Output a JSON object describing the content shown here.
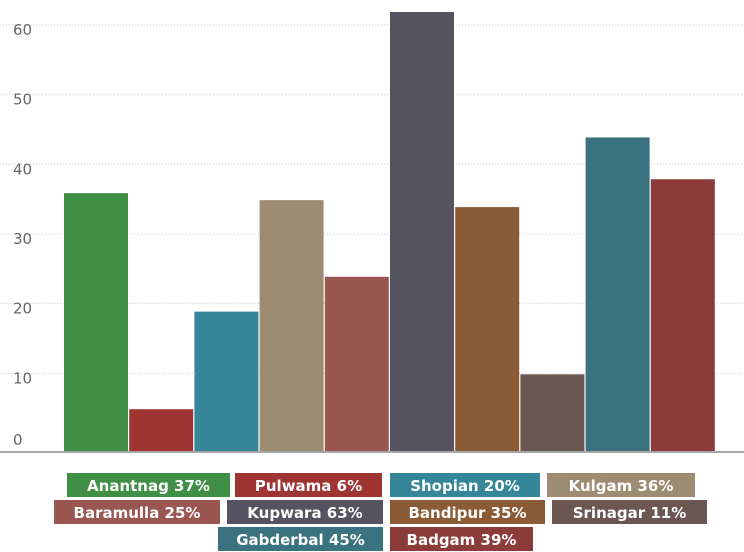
{
  "chart_data": {
    "type": "bar",
    "categories": [
      "Anantnag",
      "Pulwama",
      "Shopian",
      "Kulgam",
      "Baramulla",
      "Kupwara",
      "Bandipur",
      "Srinagar",
      "Gabderbal",
      "Badgam"
    ],
    "values": [
      37,
      6,
      20,
      36,
      25,
      63,
      35,
      11,
      45,
      39
    ],
    "colors": [
      "#3f8f45",
      "#9e3533",
      "#358699",
      "#9d8c72",
      "#9a5650",
      "#55535f",
      "#8a5b35",
      "#6b5652",
      "#3a7280",
      "#8b3b39"
    ],
    "legend_labels": [
      "Anantnag 37%",
      "Pulwama 6%",
      "Shopian 20%",
      "Kulgam 36%",
      "Baramulla 25%",
      "Kupwara 63%",
      "Bandipur 35%",
      "Srinagar 11%",
      "Gabderbal 45%",
      "Badgam 39%"
    ],
    "ylim": [
      0,
      63
    ],
    "yticks": [
      0,
      10,
      20,
      30,
      40,
      50,
      60
    ],
    "grid": true,
    "legend_position": "bottom",
    "title": "",
    "xlabel": "",
    "ylabel": ""
  }
}
